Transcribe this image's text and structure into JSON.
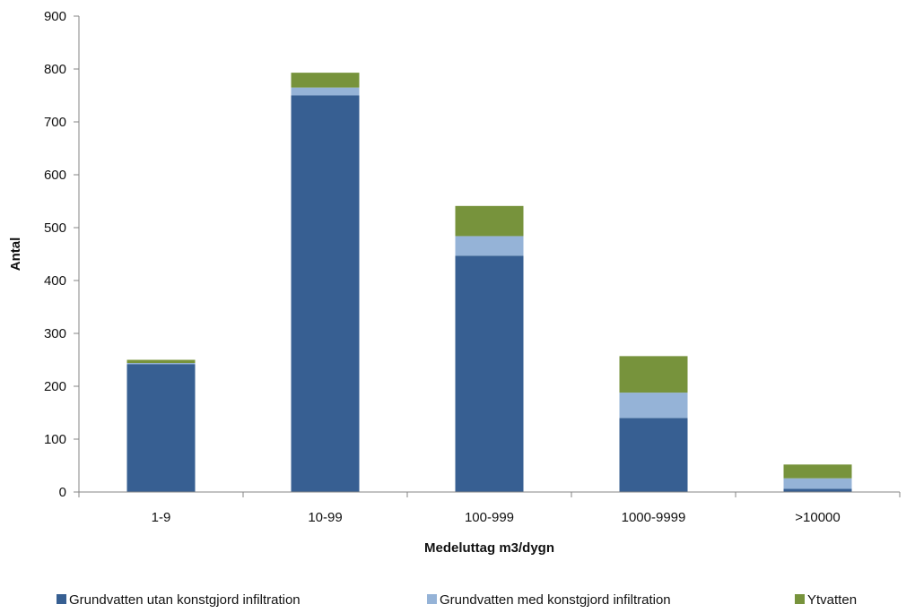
{
  "chart_data": {
    "type": "bar",
    "stacked": true,
    "categories": [
      "1-9",
      "10-99",
      "100-999",
      "1000-9999",
      ">10000"
    ],
    "series": [
      {
        "name": "Grundvatten utan konstgjord infiltration",
        "color": "#375f92",
        "values": [
          242,
          750,
          447,
          140,
          6
        ]
      },
      {
        "name": "Grundvatten med konstgjord infiltration",
        "color": "#95b3d7",
        "values": [
          2,
          15,
          37,
          48,
          20
        ]
      },
      {
        "name": "Ytvatten",
        "color": "#77933c",
        "values": [
          6,
          28,
          57,
          69,
          26
        ]
      }
    ],
    "title": "",
    "xlabel": "Medeluttag m3/dygn",
    "ylabel": "Antal",
    "ylim": [
      0,
      900
    ],
    "yticks": [
      0,
      100,
      200,
      300,
      400,
      500,
      600,
      700,
      800,
      900
    ],
    "grid": false,
    "legend": "bottom"
  }
}
